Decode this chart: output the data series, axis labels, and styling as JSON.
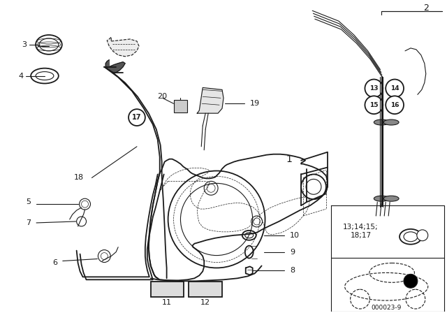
{
  "bg_color": "#ffffff",
  "lc": "#1a1a1a",
  "diagram_code": "000023-9",
  "inset_label": "13;14;15;\n18;17"
}
